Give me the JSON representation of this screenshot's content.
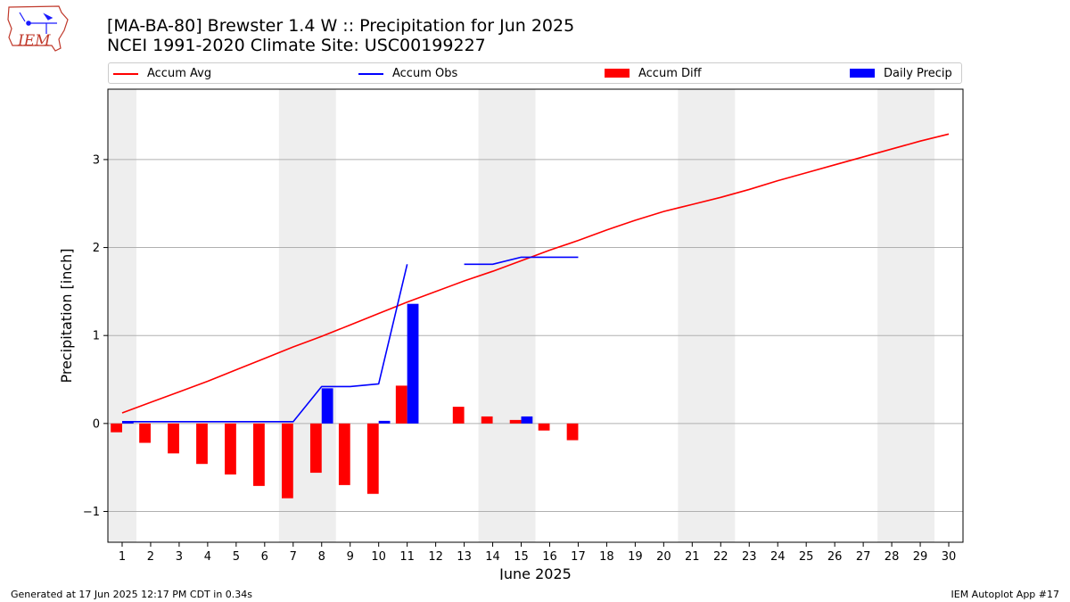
{
  "header": {
    "logo_text": "IEM",
    "title_line1": "[MA-BA-80] Brewster 1.4 W :: Precipitation for Jun 2025",
    "title_line2": "NCEI 1991-2020 Climate Site: USC00199227"
  },
  "legend": [
    {
      "label": "Accum Avg",
      "color": "#ff0000",
      "kind": "line"
    },
    {
      "label": "Accum Obs",
      "color": "#0000ff",
      "kind": "line"
    },
    {
      "label": "Accum Diff",
      "color": "#ff0000",
      "kind": "bar"
    },
    {
      "label": "Daily Precip",
      "color": "#0000ff",
      "kind": "bar"
    }
  ],
  "footer": {
    "left": "Generated at 17 Jun 2025 12:17 PM CDT in 0.34s",
    "right": "IEM Autoplot App #17"
  },
  "chart_data": {
    "type": "bar",
    "xlabel": "June 2025",
    "ylabel": "Precipitation [inch]",
    "xlim": [
      0.5,
      30.5
    ],
    "ylim": [
      -1.35,
      3.8
    ],
    "yticks": [
      -1,
      0,
      1,
      2,
      3
    ],
    "ytick_labels": [
      "−1",
      "0",
      "1",
      "2",
      "3"
    ],
    "days": [
      1,
      2,
      3,
      4,
      5,
      6,
      7,
      8,
      9,
      10,
      11,
      12,
      13,
      14,
      15,
      16,
      17,
      18,
      19,
      20,
      21,
      22,
      23,
      24,
      25,
      26,
      27,
      28,
      29,
      30
    ],
    "grid": "y",
    "weekend_shading": [
      [
        0.5,
        1.5
      ],
      [
        6.5,
        8.5
      ],
      [
        13.5,
        15.5
      ],
      [
        20.5,
        22.5
      ],
      [
        27.5,
        29.5
      ]
    ],
    "series": [
      {
        "name": "Accum Avg",
        "kind": "line",
        "color": "#ff0000",
        "x": [
          1,
          2,
          3,
          4,
          5,
          6,
          7,
          8,
          9,
          10,
          11,
          12,
          13,
          14,
          15,
          16,
          17,
          18,
          19,
          20,
          21,
          22,
          23,
          24,
          25,
          26,
          27,
          28,
          29,
          30
        ],
        "values": [
          0.12,
          0.24,
          0.36,
          0.48,
          0.61,
          0.74,
          0.87,
          0.99,
          1.12,
          1.25,
          1.38,
          1.5,
          1.62,
          1.73,
          1.85,
          1.97,
          2.08,
          2.2,
          2.31,
          2.41,
          2.49,
          2.57,
          2.66,
          2.76,
          2.85,
          2.94,
          3.03,
          3.12,
          3.21,
          3.29
        ]
      },
      {
        "name": "Accum Obs",
        "kind": "line",
        "color": "#0000ff",
        "x": [
          1,
          2,
          3,
          4,
          5,
          6,
          7,
          8,
          9,
          10,
          11,
          12,
          13,
          14,
          15,
          16,
          17
        ],
        "values": [
          0.02,
          0.02,
          0.02,
          0.02,
          0.02,
          0.02,
          0.02,
          0.42,
          0.42,
          0.45,
          1.81,
          null,
          1.81,
          1.81,
          1.89,
          1.89,
          1.89
        ]
      },
      {
        "name": "Accum Diff",
        "kind": "bar",
        "color": "#ff0000",
        "x": [
          1,
          2,
          3,
          4,
          5,
          6,
          7,
          8,
          9,
          10,
          11,
          13,
          14,
          15,
          16,
          17
        ],
        "values": [
          -0.1,
          -0.22,
          -0.34,
          -0.46,
          -0.58,
          -0.71,
          -0.85,
          -0.56,
          -0.7,
          -0.8,
          0.43,
          0.19,
          0.08,
          0.04,
          -0.08,
          -0.19
        ]
      },
      {
        "name": "Daily Precip",
        "kind": "bar",
        "color": "#0000ff",
        "x": [
          1,
          8,
          10,
          11,
          15
        ],
        "values": [
          0.02,
          0.4,
          0.03,
          1.36,
          0.08
        ]
      }
    ]
  }
}
